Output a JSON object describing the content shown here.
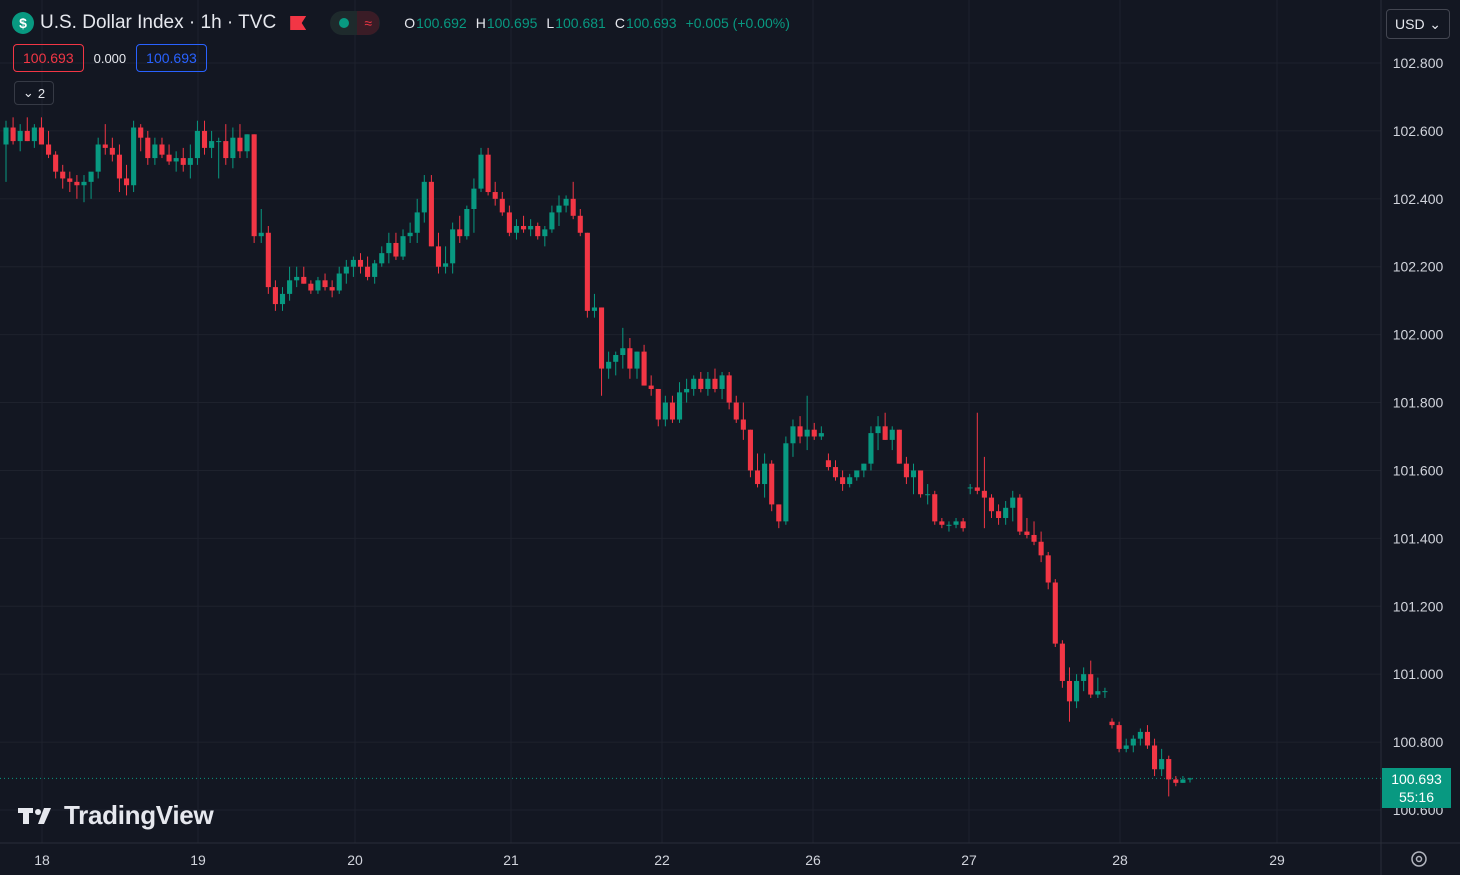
{
  "header": {
    "symbol_icon": "$",
    "title": "U.S. Dollar Index · 1h · TVC",
    "ohlc": {
      "o_label": "O",
      "o": "100.692",
      "h_label": "H",
      "h": "100.695",
      "l_label": "L",
      "l": "100.681",
      "c_label": "C",
      "c": "100.693",
      "change": "+0.005 (+0.00%)"
    },
    "status_icon": "market-open-dot-icon",
    "delay_icon": "delayed-data-icon"
  },
  "trade": {
    "sell": "100.693",
    "spread": "0.000",
    "buy": "100.693"
  },
  "indicators_toggle": "2",
  "currency": "USD",
  "last_price": {
    "value": "100.693",
    "countdown": "55:16"
  },
  "branding": "TradingView",
  "colors": {
    "up": "#089981",
    "down": "#f23645",
    "background": "#131722",
    "grid": "#1e222d",
    "text": "#d1d4dc"
  },
  "chart_data": {
    "type": "candlestick",
    "interval": "1h",
    "ylim": [
      100.52,
      102.99
    ],
    "y_ticks": [
      102.8,
      102.6,
      102.4,
      102.2,
      102.0,
      101.8,
      101.6,
      101.4,
      101.2,
      101.0,
      100.8,
      100.6
    ],
    "x_ticks": [
      "18",
      "19",
      "20",
      "21",
      "22",
      "26",
      "27",
      "28",
      "29"
    ],
    "last_price": 100.693,
    "grid": true,
    "legend": "none",
    "candles": [
      [
        102.56,
        102.63,
        102.45,
        102.61
      ],
      [
        102.61,
        102.64,
        102.56,
        102.57
      ],
      [
        102.57,
        102.62,
        102.54,
        102.6
      ],
      [
        102.6,
        102.64,
        102.57,
        102.57
      ],
      [
        102.57,
        102.62,
        102.55,
        102.61
      ],
      [
        102.61,
        102.64,
        102.56,
        102.56
      ],
      [
        102.56,
        102.6,
        102.52,
        102.53
      ],
      [
        102.53,
        102.54,
        102.46,
        102.48
      ],
      [
        102.48,
        102.5,
        102.43,
        102.46
      ],
      [
        102.46,
        102.48,
        102.42,
        102.45
      ],
      [
        102.45,
        102.47,
        102.4,
        102.44
      ],
      [
        102.44,
        102.47,
        102.39,
        102.45
      ],
      [
        102.45,
        102.47,
        102.4,
        102.48
      ],
      [
        102.48,
        102.58,
        102.46,
        102.56
      ],
      [
        102.56,
        102.62,
        102.53,
        102.55
      ],
      [
        102.55,
        102.58,
        102.51,
        102.53
      ],
      [
        102.53,
        102.56,
        102.42,
        102.46
      ],
      [
        102.46,
        102.5,
        102.41,
        102.44
      ],
      [
        102.44,
        102.63,
        102.42,
        102.61
      ],
      [
        102.61,
        102.62,
        102.54,
        102.58
      ],
      [
        102.58,
        102.6,
        102.5,
        102.52
      ],
      [
        102.52,
        102.58,
        102.5,
        102.56
      ],
      [
        102.56,
        102.58,
        102.52,
        102.53
      ],
      [
        102.53,
        102.56,
        102.5,
        102.51
      ],
      [
        102.51,
        102.54,
        102.48,
        102.52
      ],
      [
        102.52,
        102.55,
        102.48,
        102.5
      ],
      [
        102.5,
        102.56,
        102.46,
        102.52
      ],
      [
        102.52,
        102.63,
        102.5,
        102.6
      ],
      [
        102.6,
        102.63,
        102.53,
        102.55
      ],
      [
        102.55,
        102.6,
        102.52,
        102.57
      ],
      [
        102.57,
        102.58,
        102.46,
        102.57
      ],
      [
        102.57,
        102.62,
        102.5,
        102.52
      ],
      [
        102.52,
        102.61,
        102.49,
        102.58
      ],
      [
        102.58,
        102.62,
        102.52,
        102.54
      ],
      [
        102.54,
        102.59,
        102.52,
        102.59
      ],
      [
        102.59,
        102.59,
        102.27,
        102.29
      ],
      [
        102.29,
        102.37,
        102.27,
        102.3
      ],
      [
        102.3,
        102.32,
        102.12,
        102.14
      ],
      [
        102.14,
        102.16,
        102.07,
        102.09
      ],
      [
        102.09,
        102.14,
        102.07,
        102.12
      ],
      [
        102.12,
        102.2,
        102.1,
        102.16
      ],
      [
        102.16,
        102.2,
        102.14,
        102.17
      ],
      [
        102.17,
        102.2,
        102.15,
        102.15
      ],
      [
        102.15,
        102.16,
        102.12,
        102.13
      ],
      [
        102.13,
        102.17,
        102.12,
        102.16
      ],
      [
        102.16,
        102.18,
        102.13,
        102.14
      ],
      [
        102.14,
        102.16,
        102.11,
        102.13
      ],
      [
        102.13,
        102.2,
        102.12,
        102.18
      ],
      [
        102.18,
        102.22,
        102.15,
        102.2
      ],
      [
        102.2,
        102.23,
        102.17,
        102.22
      ],
      [
        102.22,
        102.24,
        102.18,
        102.2
      ],
      [
        102.2,
        102.23,
        102.16,
        102.17
      ],
      [
        102.17,
        102.22,
        102.15,
        102.21
      ],
      [
        102.21,
        102.26,
        102.2,
        102.24
      ],
      [
        102.24,
        102.3,
        102.21,
        102.27
      ],
      [
        102.27,
        102.3,
        102.22,
        102.23
      ],
      [
        102.23,
        102.31,
        102.22,
        102.29
      ],
      [
        102.29,
        102.33,
        102.27,
        102.3
      ],
      [
        102.3,
        102.4,
        102.27,
        102.36
      ],
      [
        102.36,
        102.47,
        102.33,
        102.45
      ],
      [
        102.45,
        102.47,
        102.26,
        102.26
      ],
      [
        102.26,
        102.3,
        102.18,
        102.2
      ],
      [
        102.2,
        102.26,
        102.18,
        102.21
      ],
      [
        102.21,
        102.33,
        102.18,
        102.31
      ],
      [
        102.31,
        102.35,
        102.27,
        102.29
      ],
      [
        102.29,
        102.38,
        102.28,
        102.37
      ],
      [
        102.37,
        102.46,
        102.3,
        102.43
      ],
      [
        102.43,
        102.55,
        102.42,
        102.53
      ],
      [
        102.53,
        102.55,
        102.41,
        102.42
      ],
      [
        102.42,
        102.45,
        102.38,
        102.4
      ],
      [
        102.4,
        102.42,
        102.35,
        102.36
      ],
      [
        102.36,
        102.38,
        102.29,
        102.3
      ],
      [
        102.3,
        102.34,
        102.28,
        102.32
      ],
      [
        102.32,
        102.35,
        102.3,
        102.31
      ],
      [
        102.31,
        102.34,
        102.29,
        102.32
      ],
      [
        102.32,
        102.33,
        102.28,
        102.29
      ],
      [
        102.29,
        102.32,
        102.26,
        102.31
      ],
      [
        102.31,
        102.38,
        102.3,
        102.36
      ],
      [
        102.36,
        102.41,
        102.32,
        102.38
      ],
      [
        102.38,
        102.41,
        102.36,
        102.4
      ],
      [
        102.4,
        102.45,
        102.34,
        102.35
      ],
      [
        102.35,
        102.37,
        102.29,
        102.3
      ],
      [
        102.3,
        102.3,
        102.05,
        102.07
      ],
      [
        102.07,
        102.12,
        102.05,
        102.08
      ],
      [
        102.08,
        102.08,
        101.82,
        101.9
      ],
      [
        101.9,
        101.95,
        101.87,
        101.92
      ],
      [
        101.92,
        101.95,
        101.88,
        101.94
      ],
      [
        101.94,
        102.02,
        101.9,
        101.96
      ],
      [
        101.96,
        101.99,
        101.87,
        101.9
      ],
      [
        101.9,
        101.95,
        101.87,
        101.95
      ],
      [
        101.95,
        101.97,
        101.85,
        101.85
      ],
      [
        101.85,
        101.88,
        101.82,
        101.84
      ],
      [
        101.84,
        101.84,
        101.73,
        101.75
      ],
      [
        101.75,
        101.82,
        101.73,
        101.8
      ],
      [
        101.8,
        101.82,
        101.74,
        101.75
      ],
      [
        101.75,
        101.86,
        101.74,
        101.83
      ],
      [
        101.83,
        101.87,
        101.8,
        101.84
      ],
      [
        101.84,
        101.88,
        101.82,
        101.87
      ],
      [
        101.87,
        101.89,
        101.83,
        101.84
      ],
      [
        101.84,
        101.89,
        101.82,
        101.87
      ],
      [
        101.87,
        101.9,
        101.83,
        101.84
      ],
      [
        101.84,
        101.89,
        101.81,
        101.88
      ],
      [
        101.88,
        101.89,
        101.78,
        101.8
      ],
      [
        101.8,
        101.82,
        101.74,
        101.75
      ],
      [
        101.75,
        101.8,
        101.69,
        101.72
      ],
      [
        101.72,
        101.72,
        101.58,
        101.6
      ],
      [
        101.6,
        101.65,
        101.55,
        101.56
      ],
      [
        101.56,
        101.65,
        101.52,
        101.62
      ],
      [
        101.62,
        101.63,
        101.48,
        101.5
      ],
      [
        101.5,
        101.5,
        101.43,
        101.45
      ],
      [
        101.45,
        101.7,
        101.44,
        101.68
      ],
      [
        101.68,
        101.75,
        101.64,
        101.73
      ],
      [
        101.73,
        101.76,
        101.68,
        101.7
      ],
      [
        101.7,
        101.82,
        101.66,
        101.72
      ],
      [
        101.72,
        101.74,
        101.69,
        101.7
      ],
      [
        101.7,
        101.73,
        101.69,
        101.71
      ],
      [
        101.63,
        101.65,
        101.6,
        101.61
      ],
      [
        101.61,
        101.63,
        101.57,
        101.58
      ],
      [
        101.58,
        101.6,
        101.54,
        101.56
      ],
      [
        101.56,
        101.59,
        101.55,
        101.58
      ],
      [
        101.58,
        101.6,
        101.57,
        101.6
      ],
      [
        101.6,
        101.62,
        101.58,
        101.62
      ],
      [
        101.62,
        101.73,
        101.6,
        101.71
      ],
      [
        101.71,
        101.76,
        101.66,
        101.73
      ],
      [
        101.73,
        101.77,
        101.69,
        101.69
      ],
      [
        101.69,
        101.73,
        101.66,
        101.72
      ],
      [
        101.72,
        101.72,
        101.62,
        101.62
      ],
      [
        101.62,
        101.64,
        101.56,
        101.58
      ],
      [
        101.58,
        101.62,
        101.53,
        101.6
      ],
      [
        101.6,
        101.6,
        101.52,
        101.53
      ],
      [
        101.53,
        101.56,
        101.5,
        101.53
      ],
      [
        101.53,
        101.54,
        101.44,
        101.45
      ],
      [
        101.45,
        101.46,
        101.43,
        101.44
      ],
      [
        101.44,
        101.45,
        101.42,
        101.44
      ],
      [
        101.44,
        101.46,
        101.43,
        101.45
      ],
      [
        101.45,
        101.46,
        101.42,
        101.43
      ],
      [
        101.55,
        101.56,
        101.53,
        101.55
      ],
      [
        101.55,
        101.77,
        101.53,
        101.54
      ],
      [
        101.54,
        101.64,
        101.43,
        101.52
      ],
      [
        101.52,
        101.53,
        101.46,
        101.48
      ],
      [
        101.48,
        101.5,
        101.44,
        101.46
      ],
      [
        101.46,
        101.51,
        101.44,
        101.49
      ],
      [
        101.49,
        101.54,
        101.45,
        101.52
      ],
      [
        101.52,
        101.53,
        101.41,
        101.42
      ],
      [
        101.42,
        101.46,
        101.4,
        101.41
      ],
      [
        101.41,
        101.45,
        101.38,
        101.39
      ],
      [
        101.39,
        101.42,
        101.33,
        101.35
      ],
      [
        101.35,
        101.36,
        101.25,
        101.27
      ],
      [
        101.27,
        101.28,
        101.08,
        101.09
      ],
      [
        101.09,
        101.1,
        100.96,
        100.98
      ],
      [
        100.98,
        101.02,
        100.86,
        100.92
      ],
      [
        100.92,
        101.0,
        100.9,
        100.98
      ],
      [
        100.98,
        101.02,
        100.95,
        101.0
      ],
      [
        101.0,
        101.04,
        100.93,
        100.94
      ],
      [
        100.94,
        100.99,
        100.93,
        100.95
      ],
      [
        100.95,
        100.96,
        100.93,
        100.95
      ],
      [
        100.86,
        100.87,
        100.84,
        100.85
      ],
      [
        100.85,
        100.86,
        100.77,
        100.78
      ],
      [
        100.78,
        100.81,
        100.77,
        100.79
      ],
      [
        100.79,
        100.82,
        100.77,
        100.81
      ],
      [
        100.81,
        100.84,
        100.79,
        100.83
      ],
      [
        100.83,
        100.85,
        100.78,
        100.79
      ],
      [
        100.79,
        100.81,
        100.7,
        100.72
      ],
      [
        100.72,
        100.78,
        100.7,
        100.75
      ],
      [
        100.75,
        100.76,
        100.64,
        100.69
      ],
      [
        100.69,
        100.7,
        100.67,
        100.68
      ],
      [
        100.68,
        100.7,
        100.68,
        100.69
      ],
      [
        100.692,
        100.695,
        100.681,
        100.693
      ]
    ]
  }
}
